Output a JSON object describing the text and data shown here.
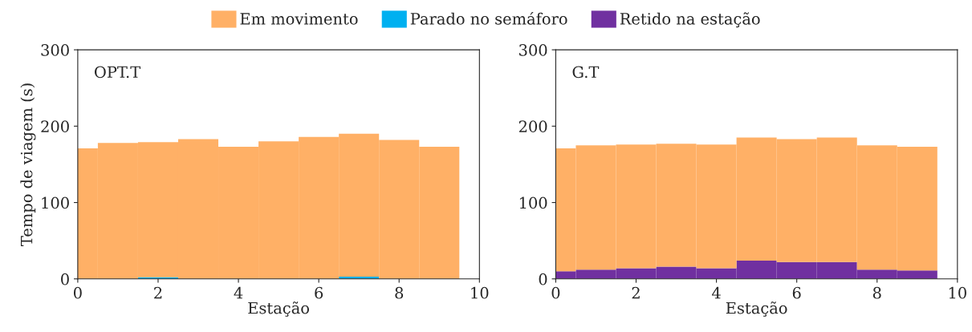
{
  "chart_data": [
    {
      "type": "bar",
      "stacked": true,
      "x": [
        0,
        1,
        2,
        3,
        4,
        5,
        6,
        7,
        8,
        9
      ],
      "ylabel": "Tempo de viagem (s)",
      "xlabel": "Estação",
      "annotations": [
        "OPT.T"
      ],
      "xlim": [
        0,
        10
      ],
      "xticks": [
        0,
        2,
        4,
        6,
        8,
        10
      ],
      "ylim": [
        0,
        300
      ],
      "yticks": [
        0,
        100,
        200,
        300
      ],
      "legend": "top",
      "grid": false,
      "series": [
        {
          "name": "Retido na estação",
          "color": "#7030a0",
          "values": [
            0,
            0,
            0,
            0,
            0,
            0,
            0,
            0,
            0,
            0
          ]
        },
        {
          "name": "Parado no semáforo",
          "color": "#00b0f0",
          "values": [
            0,
            0,
            2,
            0,
            0,
            0,
            0,
            3,
            0,
            0
          ]
        },
        {
          "name": "Em movimento",
          "color": "#ffb066",
          "values": [
            171,
            178,
            177,
            183,
            173,
            180,
            186,
            187,
            182,
            173
          ]
        }
      ]
    },
    {
      "type": "bar",
      "stacked": true,
      "x": [
        0,
        1,
        2,
        3,
        4,
        5,
        6,
        7,
        8,
        9
      ],
      "xlabel": "Estação",
      "annotations": [
        "G.T"
      ],
      "xlim": [
        0,
        10
      ],
      "xticks": [
        0,
        2,
        4,
        6,
        8,
        10
      ],
      "ylim": [
        0,
        300
      ],
      "yticks": [
        0,
        100,
        200,
        300
      ],
      "grid": false,
      "series": [
        {
          "color": "#7030a0",
          "values": [
            10,
            12,
            14,
            16,
            14,
            24,
            22,
            22,
            12,
            11
          ]
        },
        {
          "color": "#ffb066",
          "values": [
            161,
            163,
            162,
            161,
            162,
            161,
            161,
            163,
            163,
            162
          ]
        }
      ]
    }
  ]
}
